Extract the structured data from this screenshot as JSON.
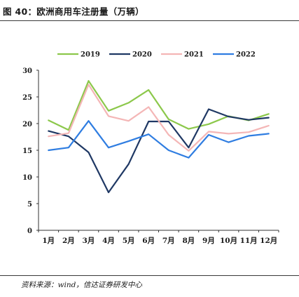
{
  "title": "图 40：欧洲商用车注册量（万辆）",
  "source": "资料来源：wind，信达证券研发中心",
  "chart_data": {
    "type": "line",
    "categories": [
      "1月",
      "2月",
      "3月",
      "4月",
      "5月",
      "6月",
      "7月",
      "8月",
      "9月",
      "10月",
      "11月",
      "12月"
    ],
    "ylim": [
      0,
      30
    ],
    "yticks": [
      0,
      5,
      10,
      15,
      20,
      25,
      30
    ],
    "grid": false,
    "legend_position": "top",
    "series": [
      {
        "name": "2019",
        "color": "#8cc84b",
        "values": [
          20.6,
          18.8,
          28.0,
          22.4,
          23.9,
          26.3,
          20.8,
          19.0,
          19.9,
          21.4,
          20.6,
          21.8
        ]
      },
      {
        "name": "2020",
        "color": "#1f3864",
        "values": [
          18.6,
          17.6,
          14.6,
          7.1,
          12.4,
          20.4,
          20.4,
          15.5,
          22.7,
          21.3,
          20.7,
          21.1
        ]
      },
      {
        "name": "2021",
        "color": "#f4b6b6",
        "values": [
          17.6,
          18.2,
          27.3,
          21.4,
          20.5,
          23.1,
          17.9,
          14.9,
          18.5,
          18.1,
          18.4,
          19.6
        ]
      },
      {
        "name": "2022",
        "color": "#2f7de1",
        "values": [
          15.0,
          15.5,
          20.5,
          15.5,
          16.7,
          18.0,
          15.0,
          13.6,
          17.9,
          16.5,
          17.7,
          18.1
        ]
      }
    ]
  }
}
